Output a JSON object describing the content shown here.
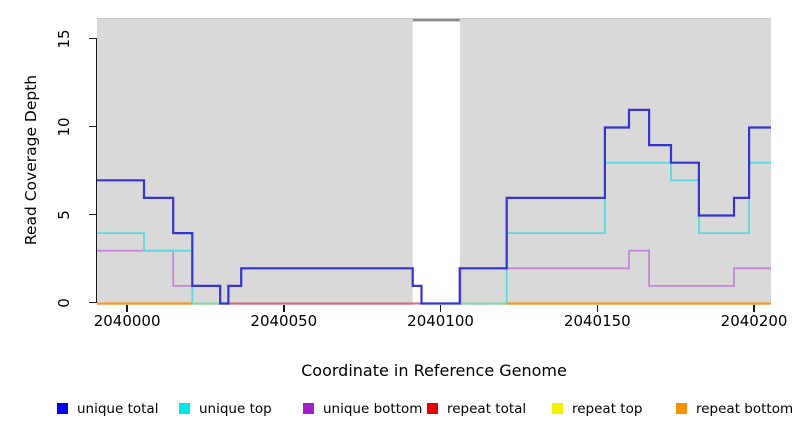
{
  "chart_data": {
    "type": "line",
    "subtype": "step-coverage-plot",
    "title": "",
    "xlabel": "Coordinate in Reference Genome",
    "ylabel": "Read Coverage Depth",
    "xlim": [
      2039990.4,
      2040205.4
    ],
    "ylim": [
      0,
      16.2
    ],
    "x_ticks": [
      2040000,
      2040050,
      2040100,
      2040150,
      2040200
    ],
    "y_ticks": [
      0,
      5,
      10,
      15
    ],
    "grid": "off",
    "panel_background": "#d9d9d9",
    "no_data_region": {
      "x_start": 2040091.1,
      "x_end": 2040106.1,
      "fill": "#ffffff",
      "top_edge_color": "#8a8a8a"
    },
    "series": [
      {
        "name": "repeat total",
        "line_color": "#e03030",
        "line_width": 1.6,
        "steps": [
          [
            2039990.4,
            0
          ]
        ]
      },
      {
        "name": "repeat top",
        "line_color": "#f0f000",
        "line_width": 1.6,
        "steps": [
          [
            2039990.4,
            0
          ]
        ]
      },
      {
        "name": "unique bottom",
        "line_color": "#c287d8",
        "line_width": 1.8,
        "steps": [
          [
            2039990.4,
            3
          ],
          [
            2040014.7,
            1
          ],
          [
            2040029.7,
            0
          ],
          [
            2040106.4,
            2
          ],
          [
            2040160.1,
            3
          ],
          [
            2040166.5,
            1
          ],
          [
            2040193.6,
            2
          ]
        ]
      },
      {
        "name": "unique top",
        "line_color": "#5cd9dc",
        "line_width": 1.8,
        "steps": [
          [
            2039990.4,
            4
          ],
          [
            2040005.4,
            3
          ],
          [
            2040020.8,
            0
          ],
          [
            2040121.1,
            4
          ],
          [
            2040152.4,
            8
          ],
          [
            2040173.5,
            7
          ],
          [
            2040182.4,
            4
          ],
          [
            2040198.4,
            8
          ]
        ]
      },
      {
        "name": "repeat bottom",
        "line_color": "#ff9400",
        "line_width": 2,
        "steps": [
          [
            2039990.4,
            0
          ]
        ]
      },
      {
        "name": "unique total",
        "line_color": "#3434d0",
        "line_width": 2.2,
        "steps": [
          [
            2039990.4,
            7
          ],
          [
            2040005.4,
            6
          ],
          [
            2040014.7,
            4
          ],
          [
            2040020.8,
            1
          ],
          [
            2040029.7,
            0
          ],
          [
            2040032.3,
            1
          ],
          [
            2040036.4,
            2
          ],
          [
            2040091.1,
            1
          ],
          [
            2040093.9,
            0
          ],
          [
            2040106.1,
            2
          ],
          [
            2040121.1,
            6
          ],
          [
            2040152.4,
            10
          ],
          [
            2040160.1,
            11
          ],
          [
            2040166.5,
            9
          ],
          [
            2040173.5,
            8
          ],
          [
            2040182.4,
            5
          ],
          [
            2040193.6,
            6
          ],
          [
            2040198.4,
            10
          ]
        ]
      }
    ],
    "zero_line_blend_segments": [
      {
        "color": "#7cd9a2",
        "value": 0,
        "x_start": 2040020.8,
        "x_end": 2040032.3
      },
      {
        "color": "#e0647a",
        "value": 0,
        "x_start": 2040032.9,
        "x_end": 2040106.1
      },
      {
        "color": "#7cd9a2",
        "value": 0,
        "x_start": 2040106.4,
        "x_end": 2040121.1
      }
    ]
  },
  "x_axis": {
    "label": "Coordinate in Reference Genome",
    "tick_labels": [
      "2040000",
      "2040050",
      "2040100",
      "2040150",
      "2040200"
    ]
  },
  "y_axis": {
    "label": "Read Coverage Depth",
    "tick_labels": [
      "0",
      "5",
      "10",
      "15"
    ]
  },
  "legend": {
    "items": [
      {
        "label": "unique total",
        "color": "#0000f0"
      },
      {
        "label": "unique top",
        "color": "#00e5e5"
      },
      {
        "label": "unique bottom",
        "color": "#a220cc"
      },
      {
        "label": "repeat total",
        "color": "#e60000"
      },
      {
        "label": "repeat top",
        "color": "#f2f200"
      },
      {
        "label": "repeat bottom",
        "color": "#f59300"
      }
    ]
  }
}
